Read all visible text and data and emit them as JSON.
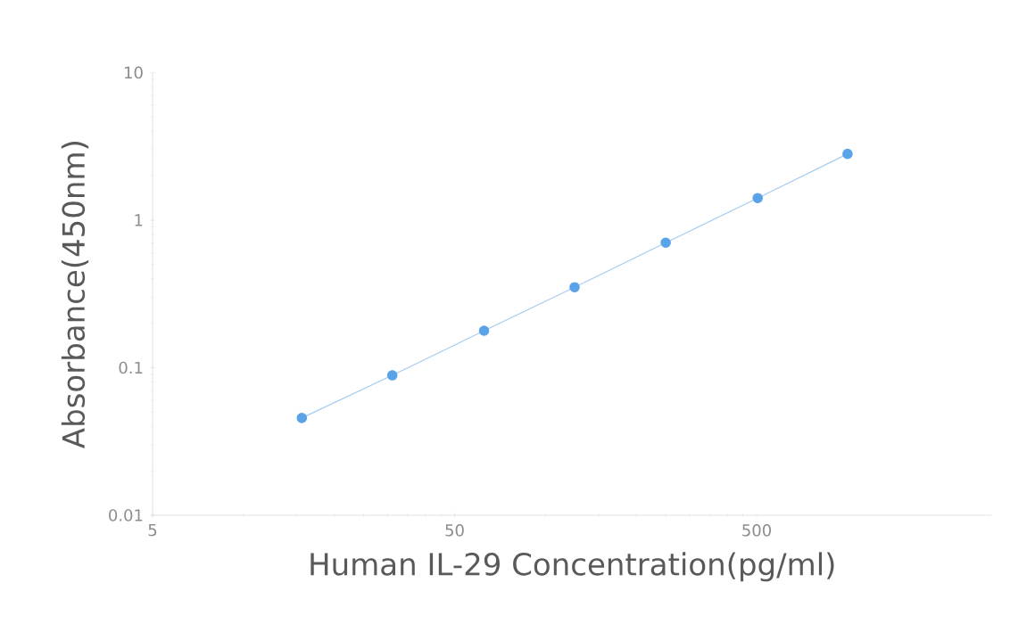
{
  "chart_data": {
    "type": "line",
    "xlabel": "Human IL-29  Concentration(pg/ml)",
    "ylabel": "Absorbance(450nm)",
    "log": "xy",
    "xlim": [
      5,
      3000
    ],
    "ylim": [
      0.01,
      10
    ],
    "xticks": [
      5,
      50,
      500
    ],
    "yticks": [
      0.01,
      0.1,
      1,
      10
    ],
    "grid": false,
    "marker": "circle",
    "line_style": "solid",
    "series": [
      {
        "color": "#5ba3e8",
        "x": [
          15.6,
          31.1,
          62.6,
          124.8,
          250,
          504,
          1000
        ],
        "values": [
          0.0456,
          0.0887,
          0.178,
          0.351,
          0.703,
          1.41,
          2.81
        ]
      }
    ]
  }
}
